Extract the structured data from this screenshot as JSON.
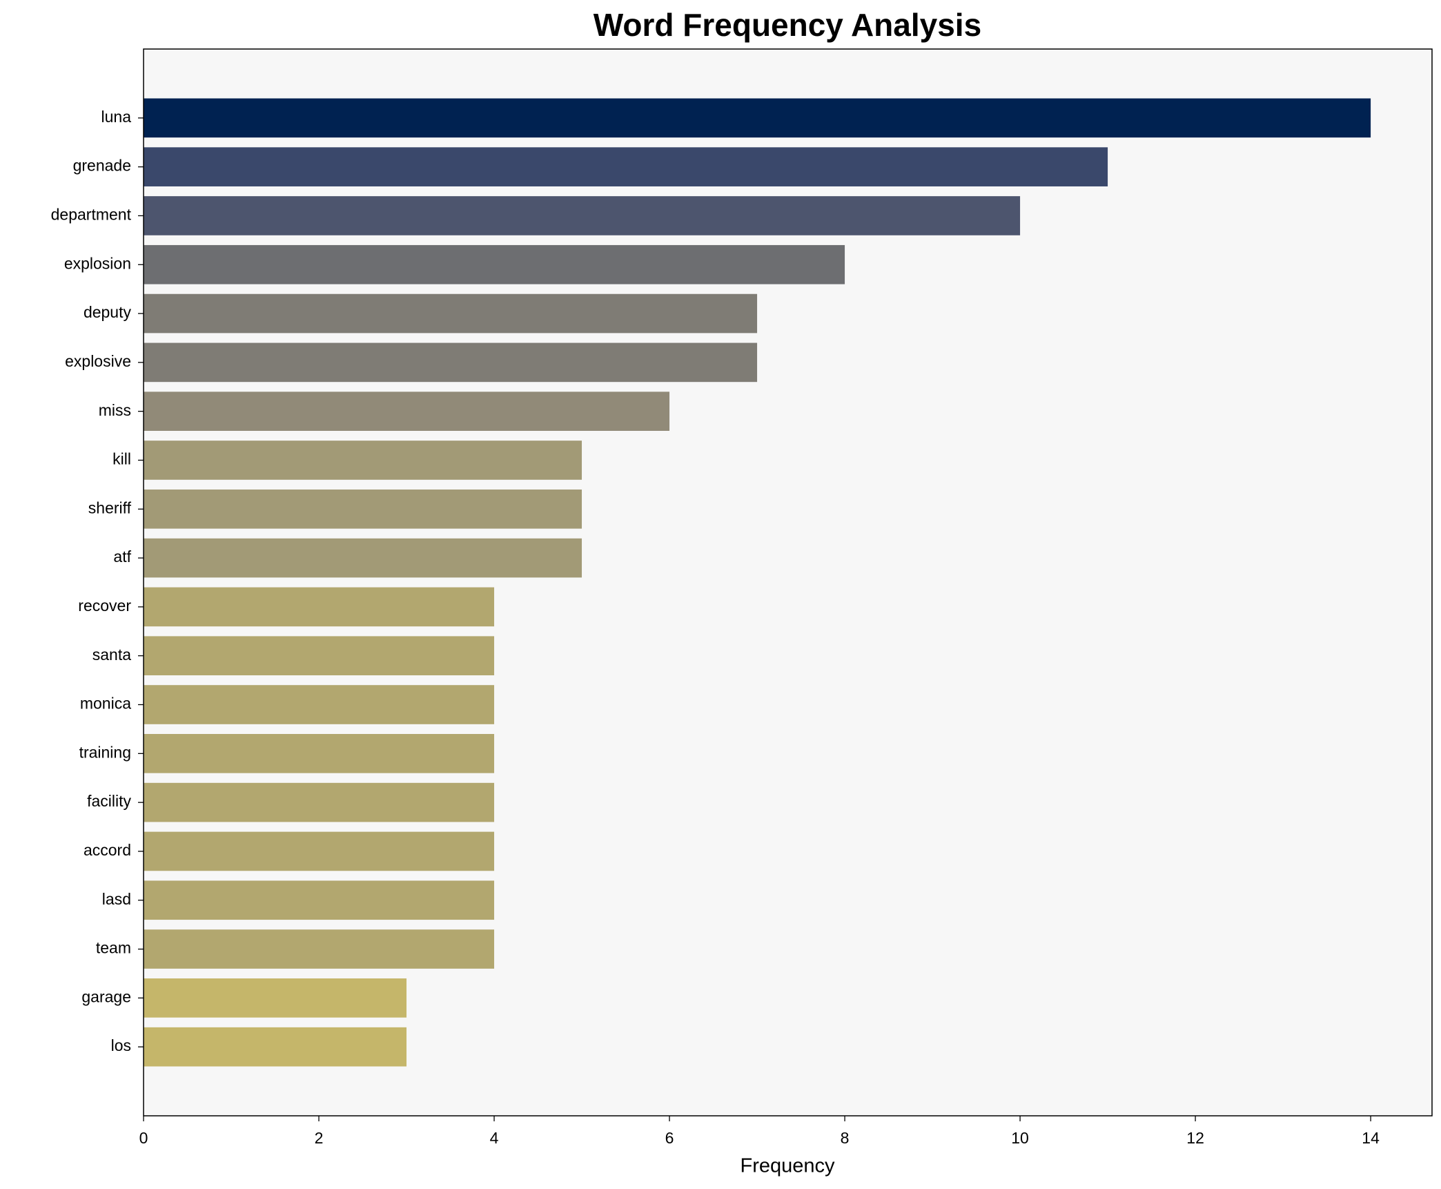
{
  "chart_data": {
    "type": "barh",
    "title": "Word Frequency Analysis",
    "xlabel": "Frequency",
    "categories": [
      "luna",
      "grenade",
      "department",
      "explosion",
      "deputy",
      "explosive",
      "miss",
      "kill",
      "sheriff",
      "atf",
      "recover",
      "santa",
      "monica",
      "training",
      "facility",
      "accord",
      "lasd",
      "team",
      "garage",
      "los"
    ],
    "values": [
      14,
      11,
      10,
      8,
      7,
      7,
      6,
      5,
      5,
      5,
      4,
      4,
      4,
      4,
      4,
      4,
      4,
      4,
      3,
      3
    ],
    "colors": [
      "#002251",
      "#3a486b",
      "#4d556e",
      "#6d6e71",
      "#7f7c75",
      "#7f7c75",
      "#918a78",
      "#a29a76",
      "#a29a76",
      "#a29a76",
      "#b2a76f",
      "#b2a76f",
      "#b2a76f",
      "#b2a76f",
      "#b2a76f",
      "#b2a76f",
      "#b2a76f",
      "#b2a76f",
      "#c5b66a",
      "#c5b66a"
    ],
    "xlim": [
      0,
      14.7
    ],
    "xticks": [
      0,
      2,
      4,
      6,
      8,
      10,
      12,
      14
    ]
  }
}
